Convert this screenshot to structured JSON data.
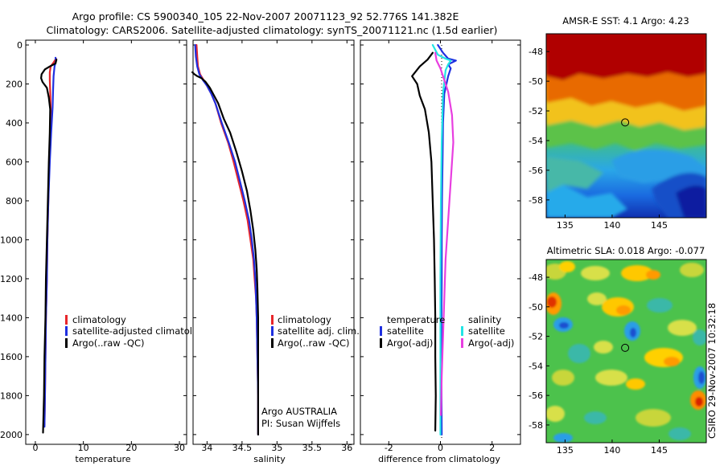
{
  "header": {
    "line1": "Argo profile: CS 5900340_105 22-Nov-2007 20071123_92 52.776S 141.382E",
    "line2": "Climatology: CARS2006. Satellite-adjusted climatology: synTS_20071121.nc (1.5d earlier)"
  },
  "credit": "CSIRO 29-Nov-2007 10:32:18",
  "colors": {
    "climatology": "#e8262b",
    "satellite": "#1f2fe0",
    "argo": "#000000",
    "salinity_satellite": "#22e5e5",
    "salinity_argo": "#e83ee0",
    "temperature_satellite": "#1f2fe0",
    "temperature_argo": "#000000"
  },
  "chart_data": [
    {
      "id": "temperature",
      "type": "line",
      "xlabel": "temperature",
      "ylabel": "",
      "xlim": [
        -2,
        31.5
      ],
      "ylim": [
        2050,
        0
      ],
      "xticks": [
        0,
        10,
        20,
        30
      ],
      "yticks": [
        0,
        200,
        400,
        600,
        800,
        1000,
        1200,
        1400,
        1600,
        1800,
        2000
      ],
      "legend": [
        "climatology",
        "satellite-adjusted climatology",
        "Argo(..raw -QC)"
      ],
      "series": [
        {
          "name": "climatology",
          "color_key": "climatology",
          "points": [
            [
              4.3,
              70
            ],
            [
              3.8,
              90
            ],
            [
              3.2,
              110
            ],
            [
              3.0,
              140
            ],
            [
              3.0,
              180
            ],
            [
              3.1,
              240
            ],
            [
              3.2,
              320
            ],
            [
              3.1,
              450
            ],
            [
              2.9,
              600
            ],
            [
              2.7,
              800
            ],
            [
              2.5,
              1000
            ],
            [
              2.4,
              1200
            ],
            [
              2.2,
              1400
            ],
            [
              2.1,
              1600
            ],
            [
              2.0,
              1800
            ],
            [
              1.9,
              1950
            ]
          ]
        },
        {
          "name": "satellite-adjusted climatology",
          "color_key": "satellite",
          "points": [
            [
              4.2,
              65
            ],
            [
              4.3,
              80
            ],
            [
              4.0,
              110
            ],
            [
              3.8,
              160
            ],
            [
              3.7,
              230
            ],
            [
              3.6,
              320
            ],
            [
              3.3,
              450
            ],
            [
              3.0,
              600
            ],
            [
              2.7,
              800
            ],
            [
              2.5,
              1000
            ],
            [
              2.4,
              1200
            ],
            [
              2.2,
              1400
            ],
            [
              2.1,
              1600
            ],
            [
              2.0,
              1800
            ],
            [
              1.9,
              1960
            ]
          ]
        },
        {
          "name": "Argo(..raw -QC)",
          "color_key": "argo",
          "points": [
            [
              4.4,
              75
            ],
            [
              4.2,
              95
            ],
            [
              3.0,
              110
            ],
            [
              2.0,
              125
            ],
            [
              1.3,
              150
            ],
            [
              1.2,
              170
            ],
            [
              1.5,
              190
            ],
            [
              2.4,
              220
            ],
            [
              2.8,
              270
            ],
            [
              3.1,
              330
            ],
            [
              3.0,
              450
            ],
            [
              2.8,
              600
            ],
            [
              2.6,
              800
            ],
            [
              2.4,
              1000
            ],
            [
              2.2,
              1200
            ],
            [
              2.1,
              1400
            ],
            [
              1.9,
              1600
            ],
            [
              1.8,
              1800
            ],
            [
              1.6,
              1990
            ]
          ]
        }
      ]
    },
    {
      "id": "salinity",
      "type": "line",
      "xlabel": "salinity",
      "ylabel": "",
      "xlim": [
        33.8,
        36.1
      ],
      "ylim": [
        2050,
        0
      ],
      "xticks": [
        34,
        34.5,
        35,
        35.5,
        36
      ],
      "yticks": [
        0,
        200,
        400,
        600,
        800,
        1000,
        1200,
        1400,
        1600,
        1800,
        2000
      ],
      "legend": [
        "climatology",
        "satellite adj. clim.",
        "Argo(..raw -QC)"
      ],
      "annotation": [
        "Argo AUSTRALIA",
        "PI: Susan Wijffels"
      ],
      "series": [
        {
          "name": "climatology",
          "color_key": "climatology",
          "points": [
            [
              33.85,
              0
            ],
            [
              33.86,
              60
            ],
            [
              33.87,
              110
            ],
            [
              33.9,
              150
            ],
            [
              33.95,
              180
            ],
            [
              34.0,
              210
            ],
            [
              34.06,
              250
            ],
            [
              34.12,
              300
            ],
            [
              34.2,
              400
            ],
            [
              34.3,
              500
            ],
            [
              34.38,
              600
            ],
            [
              34.45,
              700
            ],
            [
              34.52,
              800
            ],
            [
              34.58,
              900
            ],
            [
              34.62,
              1000
            ],
            [
              34.66,
              1100
            ],
            [
              34.68,
              1200
            ],
            [
              34.7,
              1300
            ],
            [
              34.71,
              1400
            ],
            [
              34.72,
              1600
            ],
            [
              34.73,
              1800
            ],
            [
              34.73,
              2000
            ]
          ]
        },
        {
          "name": "satellite adj. clim.",
          "color_key": "satellite",
          "points": [
            [
              33.83,
              0
            ],
            [
              33.84,
              60
            ],
            [
              33.86,
              110
            ],
            [
              33.89,
              150
            ],
            [
              33.94,
              180
            ],
            [
              34.0,
              210
            ],
            [
              34.06,
              250
            ],
            [
              34.12,
              300
            ],
            [
              34.21,
              400
            ],
            [
              34.31,
              500
            ],
            [
              34.4,
              600
            ],
            [
              34.47,
              700
            ],
            [
              34.54,
              800
            ],
            [
              34.6,
              900
            ],
            [
              34.64,
              1000
            ],
            [
              34.67,
              1100
            ],
            [
              34.69,
              1200
            ],
            [
              34.7,
              1300
            ],
            [
              34.71,
              1400
            ],
            [
              34.72,
              1600
            ],
            [
              34.73,
              1800
            ],
            [
              34.73,
              2000
            ]
          ]
        },
        {
          "name": "Argo(..raw -QC)",
          "color_key": "argo",
          "points": [
            [
              33.79,
              140
            ],
            [
              33.82,
              150
            ],
            [
              33.86,
              160
            ],
            [
              33.92,
              170
            ],
            [
              33.98,
              190
            ],
            [
              34.04,
              220
            ],
            [
              34.1,
              260
            ],
            [
              34.16,
              300
            ],
            [
              34.24,
              380
            ],
            [
              34.33,
              450
            ],
            [
              34.42,
              550
            ],
            [
              34.5,
              650
            ],
            [
              34.57,
              750
            ],
            [
              34.62,
              850
            ],
            [
              34.66,
              950
            ],
            [
              34.69,
              1050
            ],
            [
              34.71,
              1150
            ],
            [
              34.72,
              1250
            ],
            [
              34.73,
              1400
            ],
            [
              34.73,
              1600
            ],
            [
              34.73,
              1800
            ],
            [
              34.73,
              2000
            ]
          ]
        }
      ]
    },
    {
      "id": "difference",
      "type": "line",
      "xlabel": "difference from climatology",
      "ylabel": "",
      "xlim": [
        -3.1,
        3.1
      ],
      "ylim": [
        2050,
        0
      ],
      "xticks": [
        -2,
        0,
        2
      ],
      "yticks": [
        0,
        200,
        400,
        600,
        800,
        1000,
        1200,
        1400,
        1600,
        1800,
        2000
      ],
      "legend_left_title": "temperature",
      "legend_left": [
        "satellite",
        "Argo(-adj)"
      ],
      "legend_right_title": "salinity",
      "legend_right": [
        "satellite",
        "Argo(-adj)"
      ],
      "series": [
        {
          "name": "temperature satellite",
          "color_key": "temperature_satellite",
          "points": [
            [
              -0.1,
              0
            ],
            [
              0.1,
              40
            ],
            [
              0.3,
              70
            ],
            [
              0.6,
              80
            ],
            [
              0.3,
              100
            ],
            [
              0.4,
              120
            ],
            [
              0.3,
              160
            ],
            [
              0.15,
              250
            ],
            [
              0.1,
              400
            ],
            [
              0.08,
              600
            ],
            [
              0.06,
              800
            ],
            [
              0.05,
              1000
            ],
            [
              0.05,
              1200
            ],
            [
              0.04,
              1400
            ],
            [
              0.04,
              1600
            ],
            [
              0.04,
              1800
            ],
            [
              0.05,
              2000
            ]
          ]
        },
        {
          "name": "temperature Argo(-adj)",
          "color_key": "temperature_argo",
          "points": [
            [
              -0.3,
              40
            ],
            [
              -0.5,
              75
            ],
            [
              -0.8,
              110
            ],
            [
              -1.1,
              160
            ],
            [
              -0.9,
              200
            ],
            [
              -0.8,
              260
            ],
            [
              -0.6,
              330
            ],
            [
              -0.45,
              450
            ],
            [
              -0.35,
              600
            ],
            [
              -0.3,
              800
            ],
            [
              -0.25,
              1000
            ],
            [
              -0.22,
              1200
            ],
            [
              -0.2,
              1400
            ],
            [
              -0.2,
              1600
            ],
            [
              -0.18,
              1800
            ],
            [
              -0.2,
              1980
            ]
          ]
        },
        {
          "name": "salinity satellite",
          "color_key": "salinity_satellite",
          "points": [
            [
              -0.3,
              0
            ],
            [
              -0.1,
              50
            ],
            [
              0.2,
              70
            ],
            [
              0.4,
              80
            ],
            [
              0.3,
              100
            ],
            [
              0.2,
              130
            ],
            [
              0.1,
              250
            ],
            [
              0.05,
              500
            ],
            [
              0.02,
              800
            ],
            [
              0.0,
              1200
            ],
            [
              0.0,
              1600
            ],
            [
              0.0,
              2000
            ]
          ]
        },
        {
          "name": "salinity Argo(-adj)",
          "color_key": "salinity_argo",
          "points": [
            [
              -0.2,
              40
            ],
            [
              -0.15,
              80
            ],
            [
              0.0,
              120
            ],
            [
              0.3,
              240
            ],
            [
              0.45,
              360
            ],
            [
              0.5,
              500
            ],
            [
              0.4,
              700
            ],
            [
              0.3,
              900
            ],
            [
              0.2,
              1100
            ],
            [
              0.15,
              1300
            ],
            [
              0.1,
              1500
            ],
            [
              0.05,
              1700
            ],
            [
              0.02,
              1900
            ]
          ]
        }
      ]
    },
    {
      "id": "sst_map",
      "type": "heatmap",
      "title": "AMSR-E SST: 4.1 Argo: 4.23",
      "xlim": [
        133,
        150
      ],
      "ylim": [
        -59.2,
        -46.8
      ],
      "xticks": [
        135,
        140,
        145
      ],
      "yticks": [
        -48,
        -50,
        -52,
        -54,
        -56,
        -58
      ],
      "marker": {
        "lon": 141.382,
        "lat": -52.776
      }
    },
    {
      "id": "sla_map",
      "type": "heatmap",
      "title": "Altimetric SLA: 0.018 Argo: -0.077",
      "xlim": [
        133,
        150
      ],
      "ylim": [
        -59.2,
        -46.8
      ],
      "xticks": [
        135,
        140,
        145
      ],
      "yticks": [
        -48,
        -50,
        -52,
        -54,
        -56,
        -58
      ],
      "marker": {
        "lon": 141.382,
        "lat": -52.776
      }
    }
  ]
}
